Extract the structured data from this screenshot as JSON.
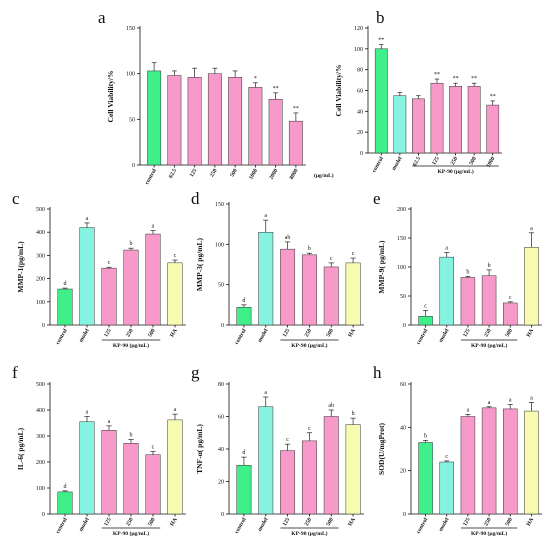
{
  "colors": {
    "control": "#3ff08a",
    "model": "#86f2e0",
    "treatment": "#f79ac9",
    "ha": "#f6fbb0",
    "edge": "#333333",
    "error": "#222222"
  },
  "chart_data": [
    {
      "id": "a",
      "letter": "a",
      "type": "bar",
      "ylabel": "Cell Viability/%",
      "unit_label": "(μg/mL)",
      "group_label": "",
      "ylim": [
        0,
        150
      ],
      "yticks": [
        "0",
        "50",
        "100",
        "150"
      ],
      "categories": [
        "control",
        "62.5",
        "125",
        "250",
        "500",
        "1000",
        "2000",
        "8000"
      ],
      "values": [
        103,
        98,
        96,
        100,
        96,
        85,
        72,
        48
      ],
      "errors": [
        9,
        5,
        10,
        6,
        7,
        5,
        7,
        9
      ],
      "annotations": [
        "",
        "",
        "",
        "",
        "",
        "*",
        "**",
        "**"
      ],
      "color_roles": [
        "control",
        "treatment",
        "treatment",
        "treatment",
        "treatment",
        "treatment",
        "treatment",
        "treatment"
      ]
    },
    {
      "id": "b",
      "letter": "b",
      "type": "bar",
      "ylabel": "Cell Viability/%",
      "unit_label": "",
      "group_label": "KP-90 (μg/mL)",
      "ylim": [
        0,
        120
      ],
      "yticks": [
        "0",
        "20",
        "40",
        "60",
        "80",
        "100",
        "120"
      ],
      "categories": [
        "control",
        "model",
        "62.5",
        "125",
        "250",
        "500",
        "1000"
      ],
      "values": [
        100,
        55,
        52,
        67,
        64,
        64,
        46
      ],
      "errors": [
        4,
        3,
        3,
        4,
        3,
        3,
        4
      ],
      "annotations": [
        "**",
        "",
        "",
        "**",
        "**",
        "**",
        "**"
      ],
      "color_roles": [
        "control",
        "model",
        "treatment",
        "treatment",
        "treatment",
        "treatment",
        "treatment"
      ]
    },
    {
      "id": "c",
      "letter": "c",
      "type": "bar",
      "ylabel": "MMP-1(pg/mL)",
      "unit_label": "",
      "group_label": "KP-90 (μg/mL)",
      "ylim": [
        0,
        500
      ],
      "yticks": [
        "0",
        "100",
        "200",
        "300",
        "400",
        "500"
      ],
      "categories": [
        "control",
        "model",
        "125",
        "250",
        "500",
        "HA"
      ],
      "values": [
        155,
        420,
        245,
        323,
        392,
        268
      ],
      "errors": [
        4,
        20,
        4,
        8,
        15,
        12
      ],
      "annotations": [
        "d",
        "a",
        "c",
        "b",
        "a",
        "c"
      ],
      "color_roles": [
        "control",
        "model",
        "treatment",
        "treatment",
        "treatment",
        "ha"
      ]
    },
    {
      "id": "d",
      "letter": "d",
      "type": "bar",
      "ylabel": "MMP-3( pg/mL)",
      "unit_label": "",
      "group_label": "KP-90 (μg/mL)",
      "ylim": [
        0,
        150
      ],
      "yticks": [
        "0",
        "50",
        "100",
        "150"
      ],
      "categories": [
        "control",
        "model",
        "125",
        "250",
        "500",
        "HA"
      ],
      "values": [
        22,
        115,
        94,
        87,
        72,
        77
      ],
      "errors": [
        3,
        15,
        9,
        2,
        5,
        6
      ],
      "annotations": [
        "d",
        "a",
        "ab",
        "b",
        "c",
        "c"
      ],
      "color_roles": [
        "control",
        "model",
        "treatment",
        "treatment",
        "treatment",
        "ha"
      ]
    },
    {
      "id": "e",
      "letter": "e",
      "type": "bar",
      "ylabel": "MMP-9( pg/mL)",
      "unit_label": "",
      "group_label": "KP-90 (μg/mL)",
      "ylim": [
        0,
        200
      ],
      "yticks": [
        "0",
        "50",
        "100",
        "150",
        "200"
      ],
      "categories": [
        "control",
        "model",
        "125",
        "250",
        "500",
        "HA"
      ],
      "values": [
        15,
        117,
        82,
        85,
        38,
        134
      ],
      "errors": [
        10,
        8,
        2,
        10,
        2,
        25
      ],
      "annotations": [
        "c",
        "a",
        "b",
        "b",
        "c",
        "a"
      ],
      "color_roles": [
        "control",
        "model",
        "treatment",
        "treatment",
        "treatment",
        "ha"
      ]
    },
    {
      "id": "f",
      "letter": "f",
      "type": "bar",
      "ylabel": "IL-6( pg/mL)",
      "unit_label": "",
      "group_label": "KP-90 (μg/mL)",
      "ylim": [
        0,
        500
      ],
      "yticks": [
        "0",
        "100",
        "200",
        "300",
        "400",
        "500"
      ],
      "categories": [
        "control",
        "model",
        "125",
        "250",
        "500",
        "HA"
      ],
      "values": [
        85,
        355,
        322,
        272,
        228,
        362
      ],
      "errors": [
        4,
        20,
        17,
        15,
        12,
        22
      ],
      "annotations": [
        "d",
        "a",
        "a",
        "b",
        "c",
        "a"
      ],
      "color_roles": [
        "control",
        "model",
        "treatment",
        "treatment",
        "treatment",
        "ha"
      ]
    },
    {
      "id": "g",
      "letter": "g",
      "type": "bar",
      "ylabel": "TNF-α( pg/mL)",
      "unit_label": "",
      "group_label": "KP-90 (μg/mL)",
      "ylim": [
        0,
        80
      ],
      "yticks": [
        "0",
        "20",
        "40",
        "60",
        "80"
      ],
      "categories": [
        "control",
        "model",
        "125",
        "250",
        "500",
        "HA"
      ],
      "values": [
        30,
        66,
        39,
        45,
        60,
        55
      ],
      "errors": [
        5,
        6,
        4,
        5,
        4,
        4
      ],
      "annotations": [
        "d",
        "a",
        "c",
        "c",
        "ab",
        "b"
      ],
      "color_roles": [
        "control",
        "model",
        "treatment",
        "treatment",
        "treatment",
        "ha"
      ]
    },
    {
      "id": "h",
      "letter": "h",
      "type": "bar",
      "ylabel": "SOD(U/mgProt)",
      "unit_label": "",
      "group_label": "KP-90 (μg/mL)",
      "ylim": [
        0,
        60
      ],
      "yticks": [
        "0",
        "20",
        "40",
        "60"
      ],
      "categories": [
        "control",
        "model",
        "125",
        "250",
        "500",
        "HA"
      ],
      "values": [
        33,
        24,
        45,
        49,
        48.5,
        47.5
      ],
      "errors": [
        1,
        0.5,
        1,
        0.5,
        2,
        4
      ],
      "annotations": [
        "b",
        "c",
        "a",
        "a",
        "a",
        "a"
      ],
      "color_roles": [
        "control",
        "model",
        "treatment",
        "treatment",
        "treatment",
        "ha"
      ]
    }
  ]
}
